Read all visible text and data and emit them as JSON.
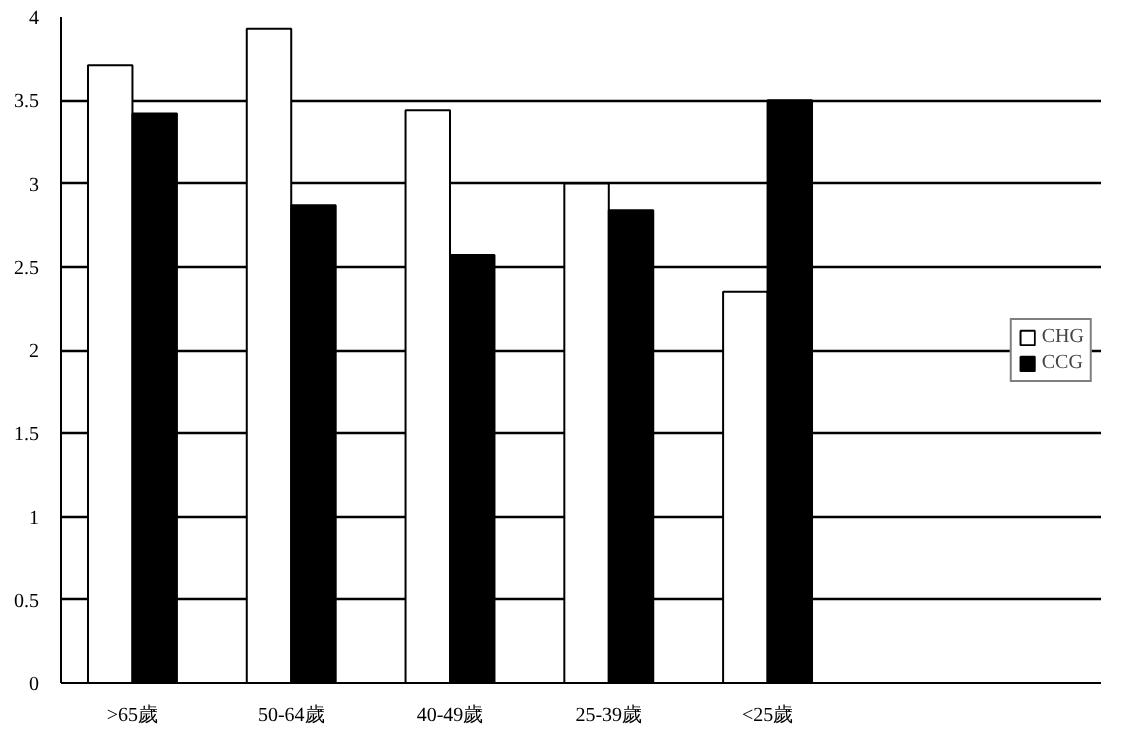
{
  "chart_data": {
    "type": "bar",
    "categories": [
      ">65歲",
      "50-64歲",
      "40-49歲",
      "25-39歲",
      "<25歲"
    ],
    "series": [
      {
        "name": "CHG",
        "color": "#ffffff",
        "values": [
          3.71,
          3.93,
          3.44,
          3.0,
          2.35
        ]
      },
      {
        "name": "CCG",
        "color": "#000000",
        "values": [
          3.42,
          2.87,
          2.57,
          2.84,
          3.5
        ]
      }
    ],
    "ylim": [
      0,
      4
    ],
    "yticks": [
      0,
      0.5,
      1,
      1.5,
      2,
      2.5,
      3,
      3.5,
      4
    ],
    "grid": "y",
    "legend": "right"
  }
}
